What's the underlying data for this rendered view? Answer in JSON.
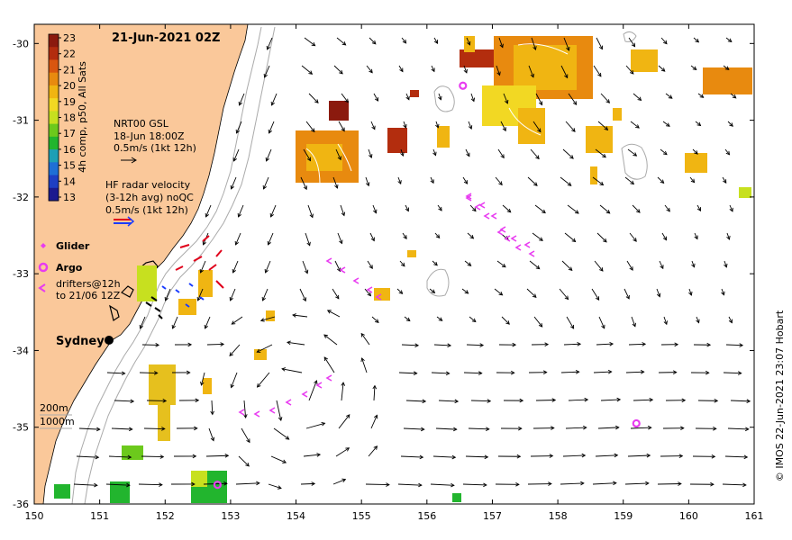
{
  "title": "21-Jun-2021 02Z",
  "colorbar": {
    "label": "4h comp, p50, All Sats",
    "ticks": [
      "23",
      "22",
      "21",
      "20",
      "19",
      "18",
      "17",
      "16",
      "15",
      "14",
      "13"
    ],
    "colors": [
      "#8b1a0e",
      "#b32d0e",
      "#d9560f",
      "#e88a0f",
      "#f0b512",
      "#f2d823",
      "#c7e01f",
      "#6cc91c",
      "#22b52e",
      "#1e9fb5",
      "#1f6fd6",
      "#1f3fc4",
      "#1c1a8f"
    ]
  },
  "legend": {
    "nrt_line1": "NRT00 GSL",
    "nrt_line2": "18-Jun 18:00Z",
    "nrt_line3": "0.5m/s (1kt 12h)",
    "hf_line1": "HF radar velocity",
    "hf_line2": "(3-12h avg) noQC",
    "hf_line3": "0.5m/s (1kt 12h)",
    "glider": "Glider",
    "argo": "Argo",
    "drifters_line1": "drifters@12h",
    "drifters_line2": "to 21/06 12Z",
    "depth_200": "200m",
    "depth_1000": "1000m"
  },
  "city": "Sydney",
  "credit": "© IMOS 22-Jun-2021 23:07 Hobart",
  "axes": {
    "x_ticks": [
      "150",
      "151",
      "152",
      "153",
      "154",
      "155",
      "156",
      "157",
      "158",
      "159",
      "160",
      "161"
    ],
    "y_ticks": [
      "-30",
      "-31",
      "-32",
      "-33",
      "-34",
      "-35",
      "-36"
    ],
    "xlim": [
      150,
      161
    ],
    "ylim": [
      -36,
      -29.75
    ]
  },
  "argo_floats": [
    {
      "lon": 156.55,
      "lat": -30.55
    },
    {
      "lon": 159.2,
      "lat": -34.95
    },
    {
      "lon": 152.8,
      "lat": -35.75
    }
  ],
  "colors": {
    "land": "#fac89a",
    "ocean": "#ffffff",
    "argo": "#e83cf0",
    "drifter": "#e83cf0",
    "hf_radar": "#1a3cff",
    "contour": "#aaaaaa"
  }
}
